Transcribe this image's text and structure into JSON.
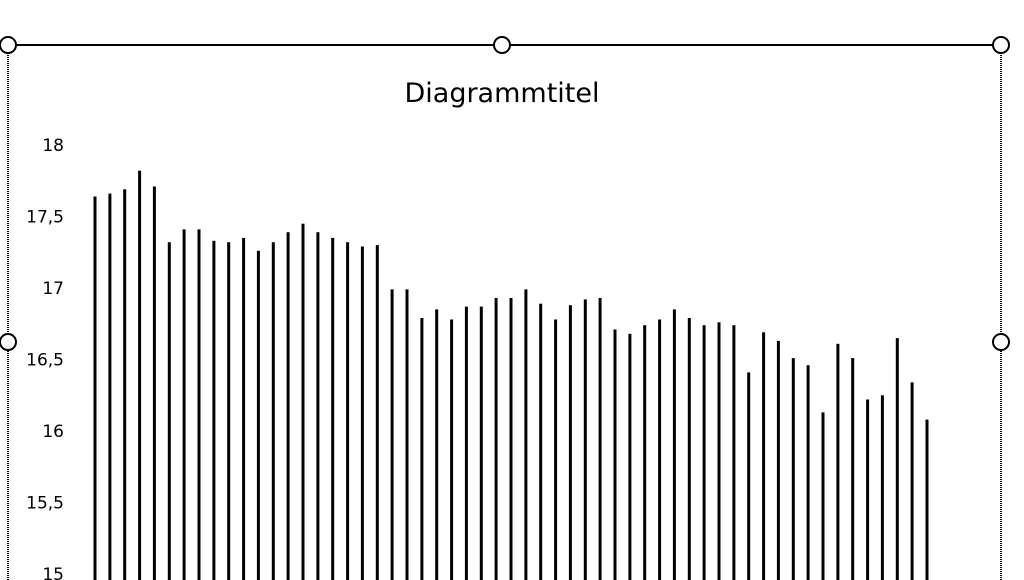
{
  "chart_data": {
    "type": "bar",
    "title": "Diagrammtitel",
    "xlabel": "",
    "ylabel": "",
    "ylim": [
      15,
      18
    ],
    "yticks": [
      "15",
      "15,5",
      "16",
      "16,5",
      "17",
      "17,5",
      "18"
    ],
    "grid": false,
    "legend": "none",
    "bar_color": "#000000",
    "values": [
      17.64,
      17.66,
      17.69,
      17.82,
      17.71,
      17.32,
      17.41,
      17.41,
      17.33,
      17.32,
      17.35,
      17.26,
      17.32,
      17.39,
      17.45,
      17.39,
      17.35,
      17.32,
      17.29,
      17.3,
      16.99,
      16.99,
      16.79,
      16.85,
      16.78,
      16.87,
      16.87,
      16.93,
      16.93,
      16.99,
      16.89,
      16.78,
      16.88,
      16.92,
      16.93,
      16.71,
      16.68,
      16.74,
      16.78,
      16.85,
      16.79,
      16.74,
      16.76,
      16.74,
      16.41,
      16.69,
      16.63,
      16.51,
      16.46,
      16.13,
      16.61,
      16.51,
      16.22,
      16.25,
      16.65,
      16.34,
      16.08
    ]
  },
  "chart_frame": {
    "selected": true
  }
}
